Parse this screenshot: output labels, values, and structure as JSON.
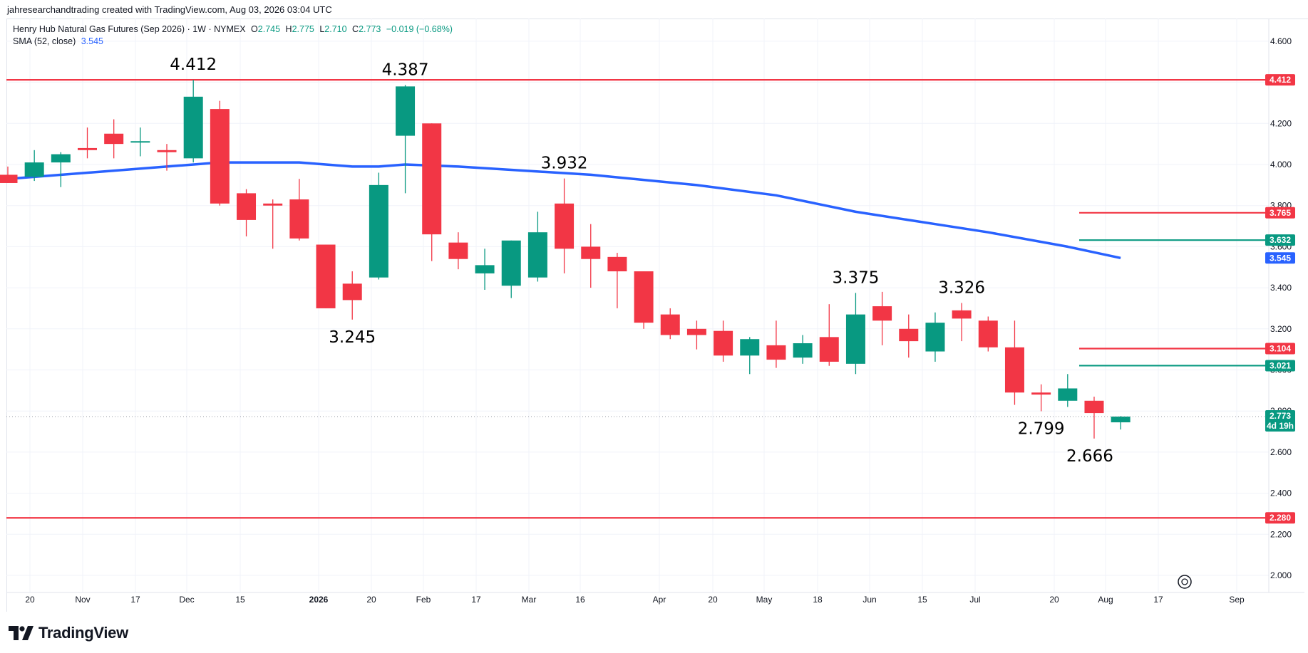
{
  "header": {
    "credit": "jahresearchandtrading created with TradingView.com, Aug 03, 2026 03:04 UTC"
  },
  "legend": {
    "symbol": "Henry Hub Natural Gas Futures (Sep 2026)",
    "interval": "1W",
    "exchange": "NYMEX",
    "o_label": "O",
    "o_value": "2.745",
    "h_label": "H",
    "h_value": "2.775",
    "l_label": "L",
    "l_value": "2.710",
    "c_label": "C",
    "c_value": "2.773",
    "change": "−0.019 (−0.68%)",
    "sma_label": "SMA (52, close)",
    "sma_value": "3.545"
  },
  "brand": {
    "name": "TradingView"
  },
  "colors": {
    "up": "#089981",
    "down": "#f23645",
    "sma": "#2962ff",
    "grid": "#f0f3fa"
  },
  "chart_data": {
    "type": "candlestick",
    "title": "Henry Hub Natural Gas Futures (Sep 2026) · 1W · NYMEX",
    "ylim": [
      1.9,
      4.7
    ],
    "y_ticks": [
      "4.600",
      "4.400",
      "4.200",
      "4.000",
      "3.800",
      "3.600",
      "3.400",
      "3.200",
      "3.000",
      "2.800",
      "2.600",
      "2.400",
      "2.200",
      "2.000"
    ],
    "x_ticks": [
      "20",
      "Nov",
      "17",
      "Dec",
      "15",
      "2026",
      "20",
      "Feb",
      "17",
      "Mar",
      "16",
      "Apr",
      "20",
      "May",
      "18",
      "Jun",
      "15",
      "Jul",
      "20",
      "Aug",
      "17",
      "Sep"
    ],
    "grid": true,
    "series": [
      {
        "name": "Henry Hub Natural Gas Futures (Sep 2026)",
        "candles": [
          {
            "date": "2025-10-13",
            "o": 3.95,
            "h": 3.99,
            "l": 3.91,
            "c": 3.91
          },
          {
            "date": "2025-10-20",
            "o": 3.94,
            "h": 4.07,
            "l": 3.92,
            "c": 4.01
          },
          {
            "date": "2025-10-27",
            "o": 4.01,
            "h": 4.06,
            "l": 3.89,
            "c": 4.05
          },
          {
            "date": "2025-11-03",
            "o": 4.08,
            "h": 4.18,
            "l": 4.03,
            "c": 4.07
          },
          {
            "date": "2025-11-10",
            "o": 4.15,
            "h": 4.22,
            "l": 4.03,
            "c": 4.1
          },
          {
            "date": "2025-11-17",
            "o": 4.11,
            "h": 4.18,
            "l": 4.04,
            "c": 4.11
          },
          {
            "date": "2025-11-24",
            "o": 4.07,
            "h": 4.1,
            "l": 3.97,
            "c": 4.06
          },
          {
            "date": "2025-12-01",
            "o": 4.03,
            "h": 4.412,
            "l": 4.01,
            "c": 4.33
          },
          {
            "date": "2025-12-08",
            "o": 4.27,
            "h": 4.31,
            "l": 3.8,
            "c": 3.81
          },
          {
            "date": "2025-12-15",
            "o": 3.86,
            "h": 3.88,
            "l": 3.65,
            "c": 3.73
          },
          {
            "date": "2025-12-22",
            "o": 3.81,
            "h": 3.83,
            "l": 3.59,
            "c": 3.8
          },
          {
            "date": "2025-12-29",
            "o": 3.83,
            "h": 3.93,
            "l": 3.63,
            "c": 3.64
          },
          {
            "date": "2026-01-05",
            "o": 3.61,
            "h": 3.61,
            "l": 3.3,
            "c": 3.3
          },
          {
            "date": "2026-01-12",
            "o": 3.42,
            "h": 3.48,
            "l": 3.245,
            "c": 3.34
          },
          {
            "date": "2026-01-19",
            "o": 3.45,
            "h": 3.96,
            "l": 3.44,
            "c": 3.9
          },
          {
            "date": "2026-01-26",
            "o": 4.14,
            "h": 4.387,
            "l": 3.86,
            "c": 4.38
          },
          {
            "date": "2026-02-02",
            "o": 4.2,
            "h": 4.2,
            "l": 3.53,
            "c": 3.66
          },
          {
            "date": "2026-02-09",
            "o": 3.62,
            "h": 3.67,
            "l": 3.49,
            "c": 3.54
          },
          {
            "date": "2026-02-16",
            "o": 3.47,
            "h": 3.59,
            "l": 3.39,
            "c": 3.51
          },
          {
            "date": "2026-02-23",
            "o": 3.41,
            "h": 3.63,
            "l": 3.35,
            "c": 3.63
          },
          {
            "date": "2026-03-02",
            "o": 3.45,
            "h": 3.77,
            "l": 3.43,
            "c": 3.67
          },
          {
            "date": "2026-03-09",
            "o": 3.81,
            "h": 3.932,
            "l": 3.47,
            "c": 3.59
          },
          {
            "date": "2026-03-16",
            "o": 3.6,
            "h": 3.71,
            "l": 3.4,
            "c": 3.54
          },
          {
            "date": "2026-03-23",
            "o": 3.55,
            "h": 3.57,
            "l": 3.3,
            "c": 3.48
          },
          {
            "date": "2026-03-30",
            "o": 3.48,
            "h": 3.48,
            "l": 3.2,
            "c": 3.23
          },
          {
            "date": "2026-04-06",
            "o": 3.27,
            "h": 3.3,
            "l": 3.15,
            "c": 3.17
          },
          {
            "date": "2026-04-13",
            "o": 3.2,
            "h": 3.24,
            "l": 3.1,
            "c": 3.17
          },
          {
            "date": "2026-04-20",
            "o": 3.19,
            "h": 3.24,
            "l": 3.04,
            "c": 3.07
          },
          {
            "date": "2026-04-27",
            "o": 3.07,
            "h": 3.16,
            "l": 2.98,
            "c": 3.15
          },
          {
            "date": "2026-05-04",
            "o": 3.12,
            "h": 3.24,
            "l": 3.01,
            "c": 3.05
          },
          {
            "date": "2026-05-11",
            "o": 3.06,
            "h": 3.17,
            "l": 3.03,
            "c": 3.13
          },
          {
            "date": "2026-05-18",
            "o": 3.16,
            "h": 3.32,
            "l": 3.02,
            "c": 3.04
          },
          {
            "date": "2026-05-25",
            "o": 3.03,
            "h": 3.375,
            "l": 2.98,
            "c": 3.27
          },
          {
            "date": "2026-06-01",
            "o": 3.31,
            "h": 3.38,
            "l": 3.12,
            "c": 3.24
          },
          {
            "date": "2026-06-08",
            "o": 3.2,
            "h": 3.27,
            "l": 3.06,
            "c": 3.14
          },
          {
            "date": "2026-06-15",
            "o": 3.09,
            "h": 3.28,
            "l": 3.04,
            "c": 3.23
          },
          {
            "date": "2026-06-22",
            "o": 3.29,
            "h": 3.326,
            "l": 3.14,
            "c": 3.25
          },
          {
            "date": "2026-06-29",
            "o": 3.24,
            "h": 3.26,
            "l": 3.09,
            "c": 3.11
          },
          {
            "date": "2026-07-06",
            "o": 3.11,
            "h": 3.24,
            "l": 2.83,
            "c": 2.89
          },
          {
            "date": "2026-07-13",
            "o": 2.89,
            "h": 2.93,
            "l": 2.799,
            "c": 2.88
          },
          {
            "date": "2026-07-20",
            "o": 2.85,
            "h": 2.98,
            "l": 2.82,
            "c": 2.91
          },
          {
            "date": "2026-07-27",
            "o": 2.85,
            "h": 2.87,
            "l": 2.666,
            "c": 2.79
          },
          {
            "date": "2026-08-03",
            "o": 2.745,
            "h": 2.775,
            "l": 2.71,
            "c": 2.773
          }
        ]
      },
      {
        "name": "SMA (52, close)",
        "points": [
          {
            "date": "2025-10-13",
            "v": 3.93
          },
          {
            "date": "2025-11-24",
            "v": 3.99
          },
          {
            "date": "2025-12-08",
            "v": 4.01
          },
          {
            "date": "2025-12-29",
            "v": 4.01
          },
          {
            "date": "2026-01-12",
            "v": 3.99
          },
          {
            "date": "2026-01-19",
            "v": 3.99
          },
          {
            "date": "2026-01-26",
            "v": 4.0
          },
          {
            "date": "2026-02-09",
            "v": 3.99
          },
          {
            "date": "2026-03-16",
            "v": 3.95
          },
          {
            "date": "2026-04-13",
            "v": 3.9
          },
          {
            "date": "2026-05-04",
            "v": 3.85
          },
          {
            "date": "2026-05-25",
            "v": 3.77
          },
          {
            "date": "2026-06-15",
            "v": 3.71
          },
          {
            "date": "2026-06-29",
            "v": 3.67
          },
          {
            "date": "2026-07-20",
            "v": 3.6
          },
          {
            "date": "2026-08-03",
            "v": 3.545
          }
        ]
      }
    ],
    "horizontal_lines": [
      {
        "value": 4.412,
        "label": "4.412",
        "color": "#f23645",
        "full": true
      },
      {
        "value": 3.765,
        "label": "3.765",
        "color": "#f23645",
        "full": false
      },
      {
        "value": 3.632,
        "label": "3.632",
        "color": "#089981",
        "full": false
      },
      {
        "value": 3.104,
        "label": "3.104",
        "color": "#f23645",
        "full": false
      },
      {
        "value": 3.021,
        "label": "3.021",
        "color": "#089981",
        "full": false
      },
      {
        "value": 2.28,
        "label": "2.280",
        "color": "#f23645",
        "full": true
      }
    ],
    "price_tags": [
      {
        "value": 3.545,
        "label": "3.545",
        "color": "#2962ff"
      },
      {
        "value": 2.773,
        "label": "2.773",
        "sub": "4d 19h",
        "color": "#089981"
      }
    ],
    "annotations": [
      {
        "date": "2025-12-01",
        "value": 4.412,
        "text": "4.412",
        "pos": "above"
      },
      {
        "date": "2026-01-26",
        "value": 4.387,
        "text": "4.387",
        "pos": "above"
      },
      {
        "date": "2026-03-09",
        "value": 3.932,
        "text": "3.932",
        "pos": "above"
      },
      {
        "date": "2026-01-12",
        "value": 3.245,
        "text": "3.245",
        "pos": "below"
      },
      {
        "date": "2026-05-25",
        "value": 3.375,
        "text": "3.375",
        "pos": "above"
      },
      {
        "date": "2026-06-22",
        "value": 3.326,
        "text": "3.326",
        "pos": "above"
      },
      {
        "date": "2026-07-13",
        "value": 2.799,
        "text": "2.799",
        "pos": "below"
      },
      {
        "date": "2026-07-27",
        "value": 2.666,
        "text": "2.666",
        "pos": "below"
      }
    ]
  }
}
